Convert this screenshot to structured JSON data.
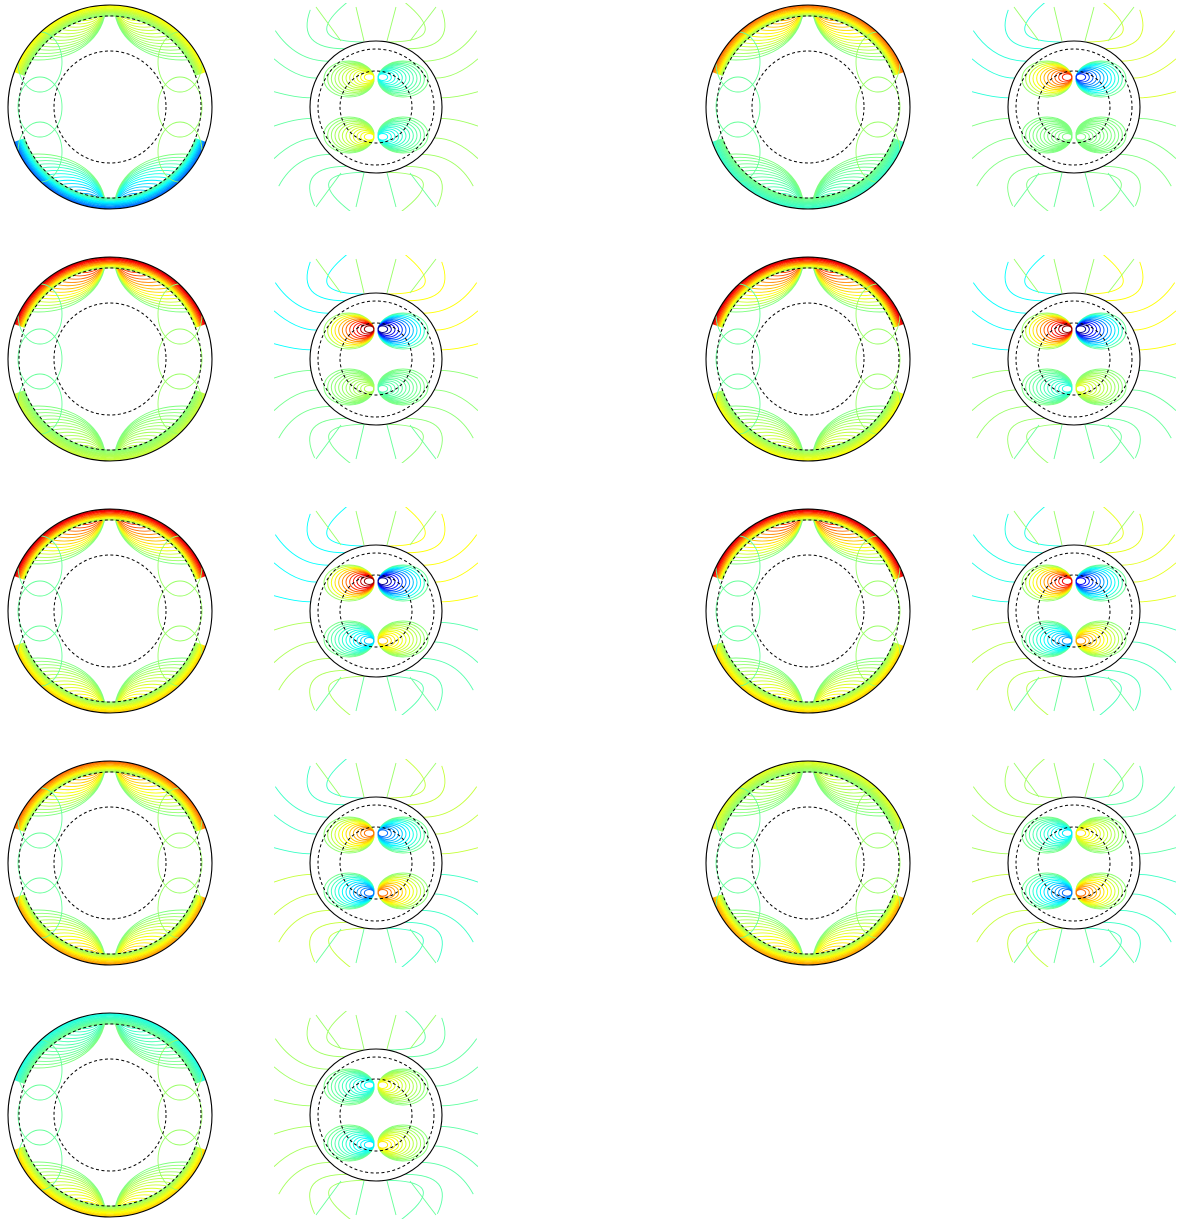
{
  "figure": {
    "caption": "",
    "colormap": [
      "#00007f",
      "#0000ff",
      "#007fff",
      "#00ffff",
      "#7fff7f",
      "#ffff00",
      "#ff7f00",
      "#ff0000",
      "#7f0000"
    ],
    "contour_line_color_outline": "#000000",
    "panels": [
      {
        "id": "panel-1",
        "left": {
          "top_amp": 0.25,
          "bottom_amp": -0.55
        },
        "right": {
          "top_amp": 0.25,
          "bottom_amp": 0.25
        }
      },
      {
        "id": "panel-2",
        "left": {
          "top_amp": 0.55,
          "bottom_amp": -0.15
        },
        "right": {
          "top_amp": 0.7,
          "bottom_amp": 0.0
        }
      },
      {
        "id": "panel-3",
        "left": {
          "top_amp": 0.85,
          "bottom_amp": 0.15
        },
        "right": {
          "top_amp": 1.0,
          "bottom_amp": 0.1
        }
      },
      {
        "id": "panel-4",
        "left": {
          "top_amp": 0.85,
          "bottom_amp": 0.25
        },
        "right": {
          "top_amp": 1.0,
          "bottom_amp": -0.2
        }
      },
      {
        "id": "panel-5",
        "left": {
          "top_amp": 0.85,
          "bottom_amp": 0.35
        },
        "right": {
          "top_amp": 1.0,
          "bottom_amp": -0.35
        }
      },
      {
        "id": "panel-6",
        "left": {
          "top_amp": 0.85,
          "bottom_amp": 0.35
        },
        "right": {
          "top_amp": 0.8,
          "bottom_amp": -0.45
        }
      },
      {
        "id": "panel-7",
        "left": {
          "top_amp": 0.55,
          "bottom_amp": 0.45
        },
        "right": {
          "top_amp": 0.55,
          "bottom_amp": -0.55
        }
      },
      {
        "id": "panel-8",
        "left": {
          "top_amp": 0.2,
          "bottom_amp": 0.45
        },
        "right": {
          "top_amp": -0.3,
          "bottom_amp": -0.55
        }
      },
      {
        "id": "panel-9",
        "left": {
          "top_amp": -0.2,
          "bottom_amp": 0.35
        },
        "right": {
          "top_amp": -0.25,
          "bottom_amp": -0.3
        }
      }
    ]
  }
}
